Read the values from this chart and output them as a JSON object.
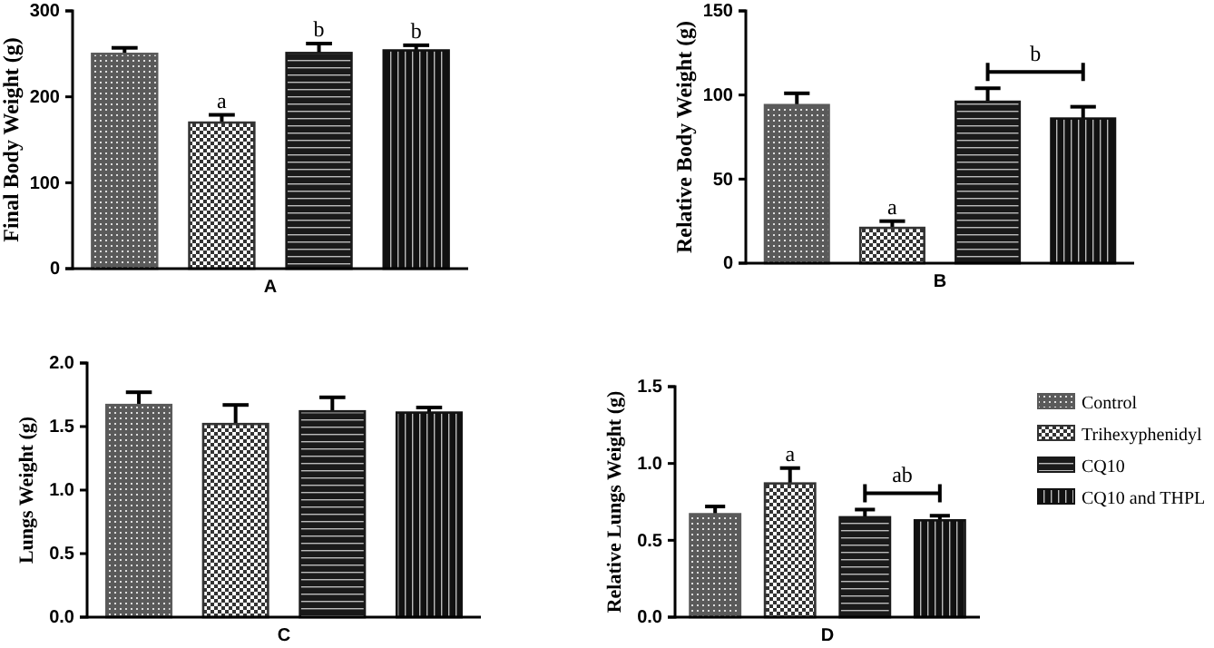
{
  "chart_data": [
    {
      "type": "bar",
      "ylabel": "Final Body Weight (g)",
      "xlabel": "A",
      "categories": [
        null
      ],
      "ylim": [
        0,
        300
      ],
      "yticks": [
        0,
        100,
        200,
        300
      ],
      "annotations": [
        "a",
        "b",
        "b"
      ],
      "series": [
        {
          "color": "#5a5a5a",
          "values": [
            250
          ],
          "errors": [
            7
          ]
        },
        {
          "color": "#333333",
          "values": [
            170
          ],
          "errors": [
            9
          ]
        },
        {
          "color": "#1a1a1a",
          "values": [
            251
          ],
          "errors": [
            11
          ]
        },
        {
          "color": "#111111",
          "values": [
            254
          ],
          "errors": [
            6
          ]
        }
      ]
    },
    {
      "type": "bar",
      "ylabel": "Relative Body Weight (g)",
      "xlabel": "B",
      "categories": [
        null
      ],
      "ylim": [
        0,
        150
      ],
      "yticks": [
        0,
        50,
        100,
        150
      ],
      "annotations": [
        "a",
        "b"
      ],
      "series": [
        {
          "color": "#5a5a5a",
          "values": [
            94
          ],
          "errors": [
            7
          ]
        },
        {
          "color": "#333333",
          "values": [
            21
          ],
          "errors": [
            4
          ]
        },
        {
          "color": "#1a1a1a",
          "values": [
            96
          ],
          "errors": [
            8
          ]
        },
        {
          "color": "#111111",
          "values": [
            86
          ],
          "errors": [
            7
          ]
        }
      ]
    },
    {
      "type": "bar",
      "ylabel": "Lungs Weight (g)",
      "xlabel": "C",
      "categories": [
        null
      ],
      "ylim": [
        0,
        2
      ],
      "yticks": [
        {
          "value": 0,
          "label": "0.0"
        },
        {
          "value": 0.5,
          "label": "0.5"
        },
        {
          "value": 1,
          "label": "1.0"
        },
        {
          "value": 1.5,
          "label": "1.5"
        },
        {
          "value": 2,
          "label": "2.0"
        }
      ],
      "series": [
        {
          "color": "#5a5a5a",
          "values": [
            1.67
          ],
          "errors": [
            0.1
          ]
        },
        {
          "color": "#333333",
          "values": [
            1.52
          ],
          "errors": [
            0.15
          ]
        },
        {
          "color": "#1a1a1a",
          "values": [
            1.62
          ],
          "errors": [
            0.11
          ]
        },
        {
          "color": "#111111",
          "values": [
            1.61
          ],
          "errors": [
            0.04
          ]
        }
      ]
    },
    {
      "type": "bar",
      "ylabel": "Relative Lungs Weight (g)",
      "xlabel": "D",
      "categories": [
        null
      ],
      "ylim": [
        0,
        1.5
      ],
      "yticks": [
        {
          "value": 0,
          "label": "0.0"
        },
        {
          "value": 0.5,
          "label": "0.5"
        },
        {
          "value": 1,
          "label": "1.0"
        },
        {
          "value": 1.5,
          "label": "1.5"
        }
      ],
      "annotations": [
        "a",
        "ab"
      ],
      "legend": "right",
      "series": [
        {
          "name": "Control",
          "color": "#5a5a5a",
          "values": [
            0.67
          ],
          "errors": [
            0.05
          ]
        },
        {
          "name": "Trihexyphenidyl",
          "color": "#333333",
          "values": [
            0.87
          ],
          "errors": [
            0.1
          ]
        },
        {
          "name": "CQ10",
          "color": "#1a1a1a",
          "values": [
            0.65
          ],
          "errors": [
            0.05
          ]
        },
        {
          "name": "CQ10 and THPL",
          "color": "#111111",
          "values": [
            0.63
          ],
          "errors": [
            0.03
          ]
        }
      ]
    }
  ]
}
